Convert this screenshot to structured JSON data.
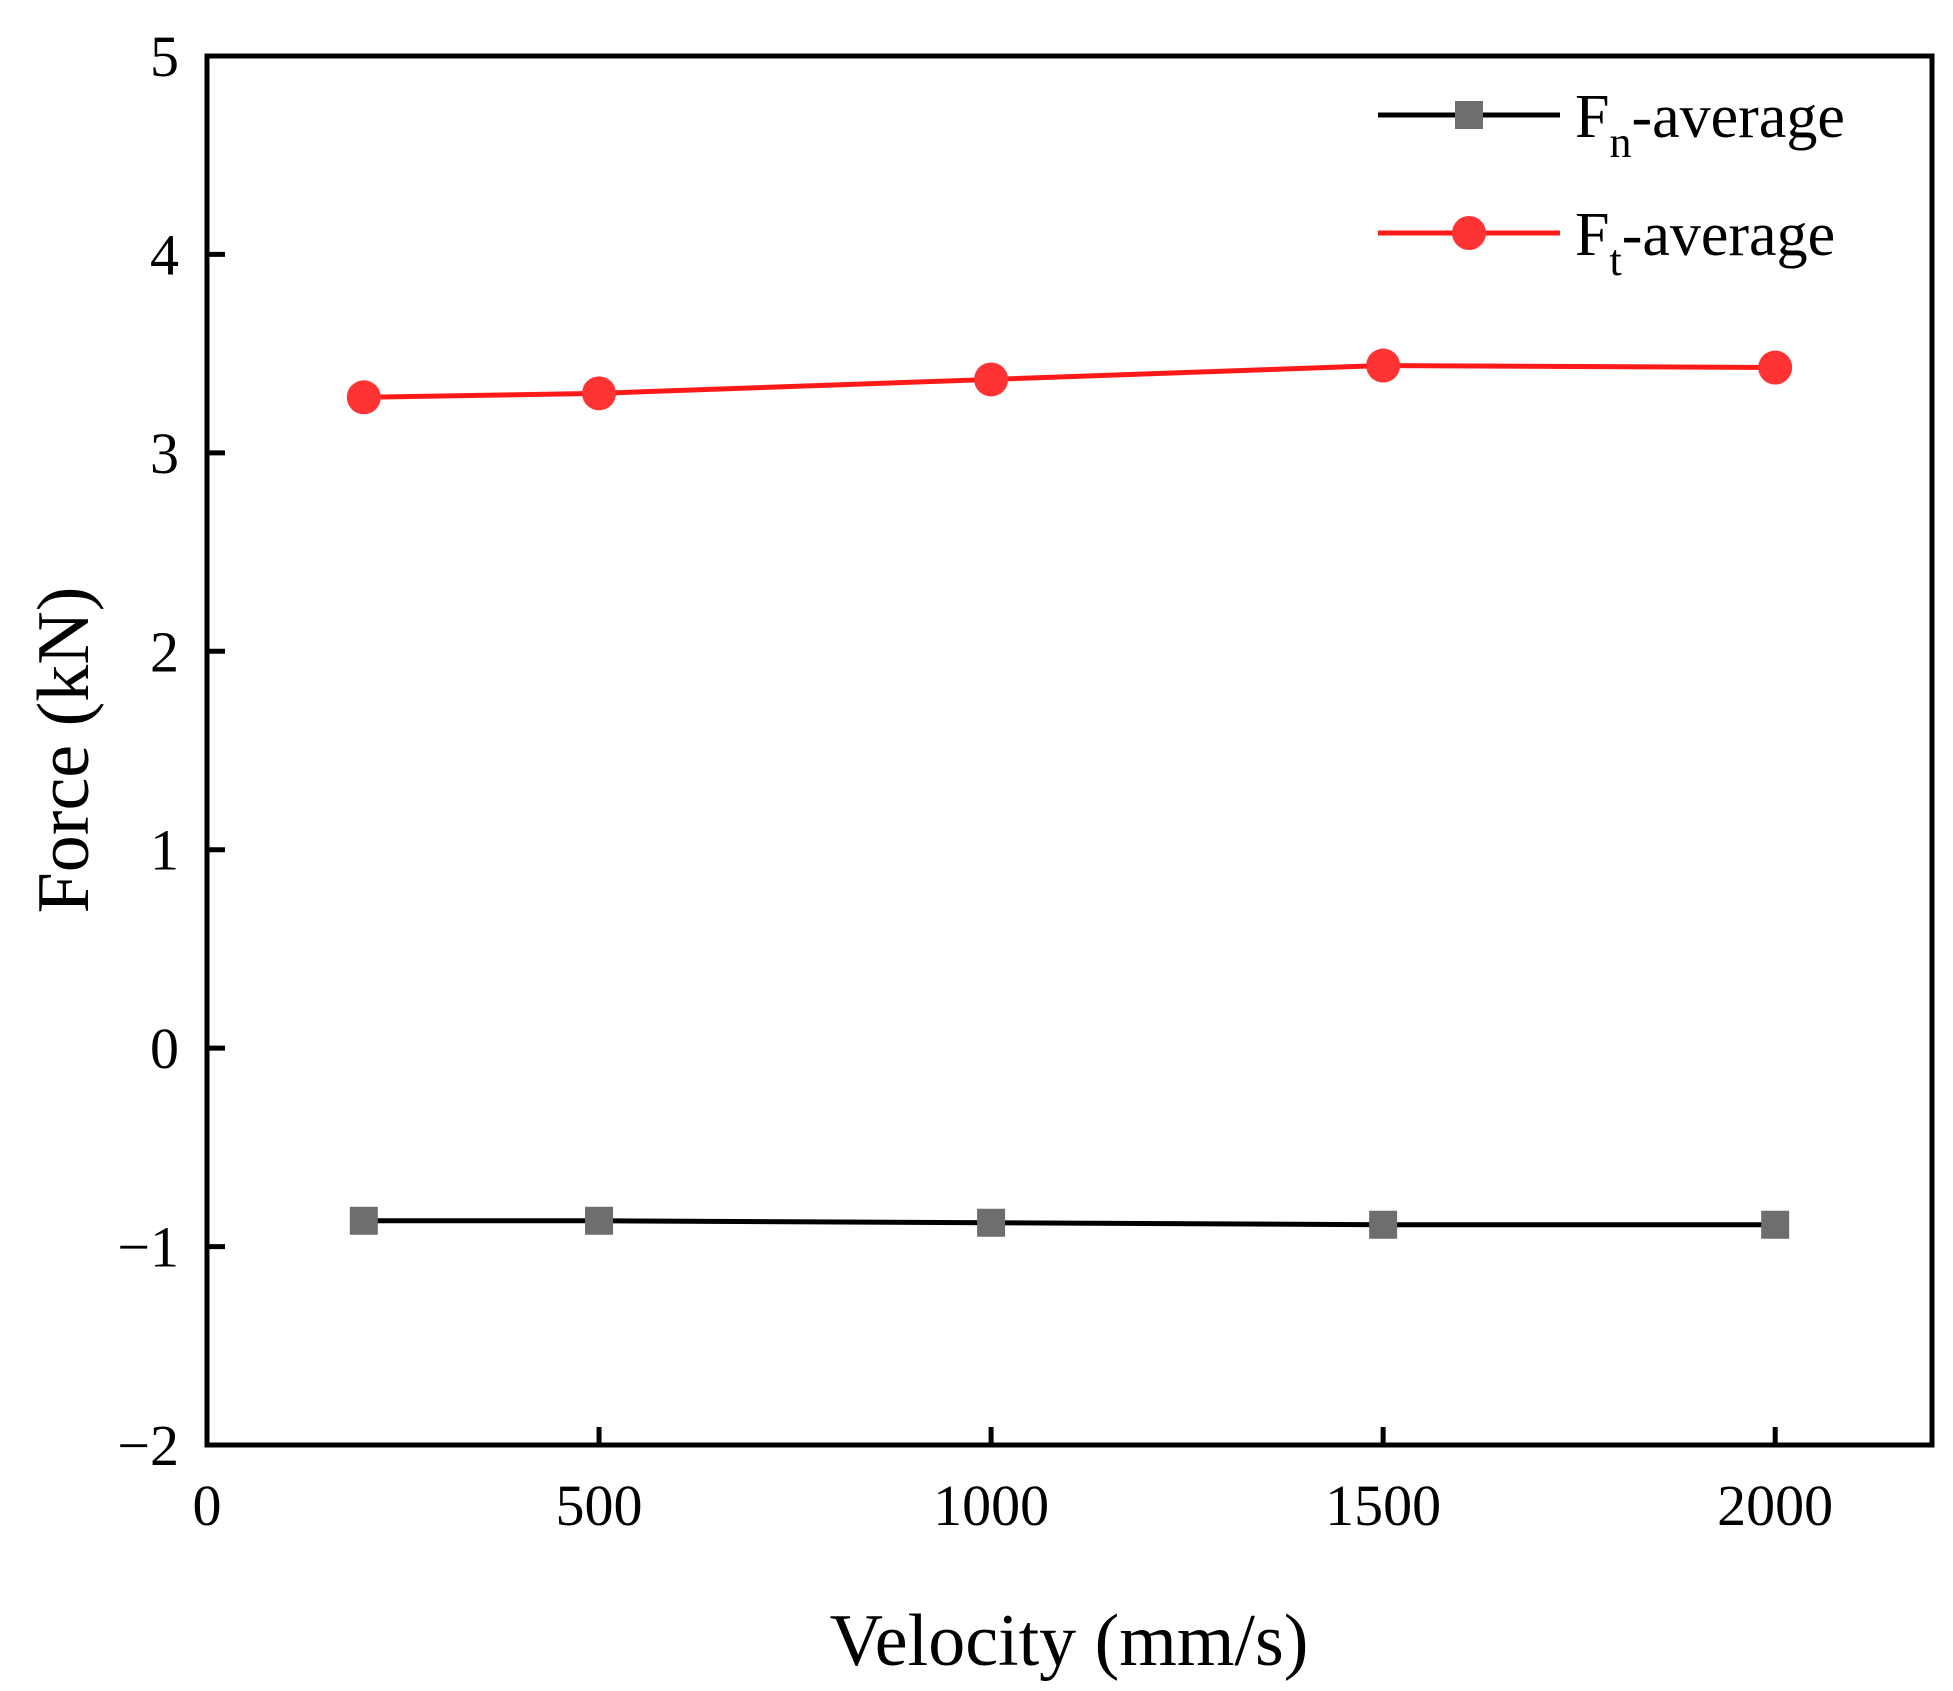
{
  "chart_data": {
    "type": "line",
    "title": "",
    "xlabel": "Velocity (mm/s)",
    "ylabel": "Force (kN)",
    "xlim": [
      0,
      2200
    ],
    "ylim": [
      -2,
      5
    ],
    "xticks": [
      0,
      500,
      1000,
      1500,
      2000
    ],
    "xtick_labels": [
      "0",
      "500",
      "1000",
      "1500",
      "2000"
    ],
    "yticks": [
      -2,
      -1,
      0,
      1,
      2,
      3,
      4,
      5
    ],
    "ytick_labels": [
      "−2",
      "−1",
      "0",
      "1",
      "2",
      "3",
      "4",
      "5"
    ],
    "grid": false,
    "legend_position": "top-right",
    "x": [
      200,
      500,
      1000,
      1500,
      2000
    ],
    "series": [
      {
        "name": "Fn-average",
        "legend_main": "F",
        "legend_sub": "n",
        "legend_rest": "-average",
        "marker": "square",
        "line_color": "#000000",
        "marker_color": "#6e6e6e",
        "values": [
          -0.87,
          -0.87,
          -0.88,
          -0.89,
          -0.89
        ]
      },
      {
        "name": "Ft-average",
        "legend_main": "F",
        "legend_sub": "t",
        "legend_rest": "-average",
        "marker": "circle",
        "line_color": "#ff1a1a",
        "marker_color": "#ff3333",
        "values": [
          3.28,
          3.3,
          3.37,
          3.44,
          3.43
        ]
      }
    ]
  }
}
